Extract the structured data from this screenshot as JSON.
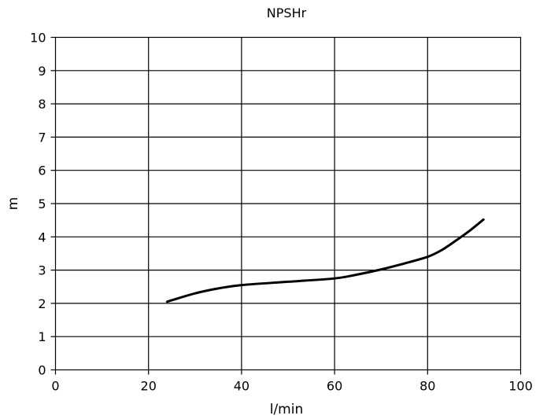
{
  "chart_data": {
    "type": "line",
    "title": "NPSHr",
    "xlabel": "l/min",
    "ylabel": "m",
    "xlim": [
      0,
      100
    ],
    "ylim": [
      0,
      10
    ],
    "x_ticks": [
      0,
      20,
      40,
      60,
      80,
      100
    ],
    "y_ticks": [
      0,
      1,
      2,
      3,
      4,
      5,
      6,
      7,
      8,
      9,
      10
    ],
    "x_tick_labels": [
      "0",
      "20",
      "40",
      "60",
      "80",
      "100"
    ],
    "y_tick_labels": [
      "0",
      "1",
      "2",
      "3",
      "4",
      "5",
      "6",
      "7",
      "8",
      "9",
      "10"
    ],
    "grid": true,
    "series": [
      {
        "color": "#000000",
        "x": [
          24,
          30,
          35,
          40,
          50,
          60,
          65,
          70,
          75,
          80,
          83,
          86,
          89,
          92
        ],
        "y": [
          2.05,
          2.3,
          2.45,
          2.55,
          2.65,
          2.75,
          2.87,
          3.02,
          3.2,
          3.4,
          3.6,
          3.88,
          4.18,
          4.52
        ]
      }
    ]
  }
}
